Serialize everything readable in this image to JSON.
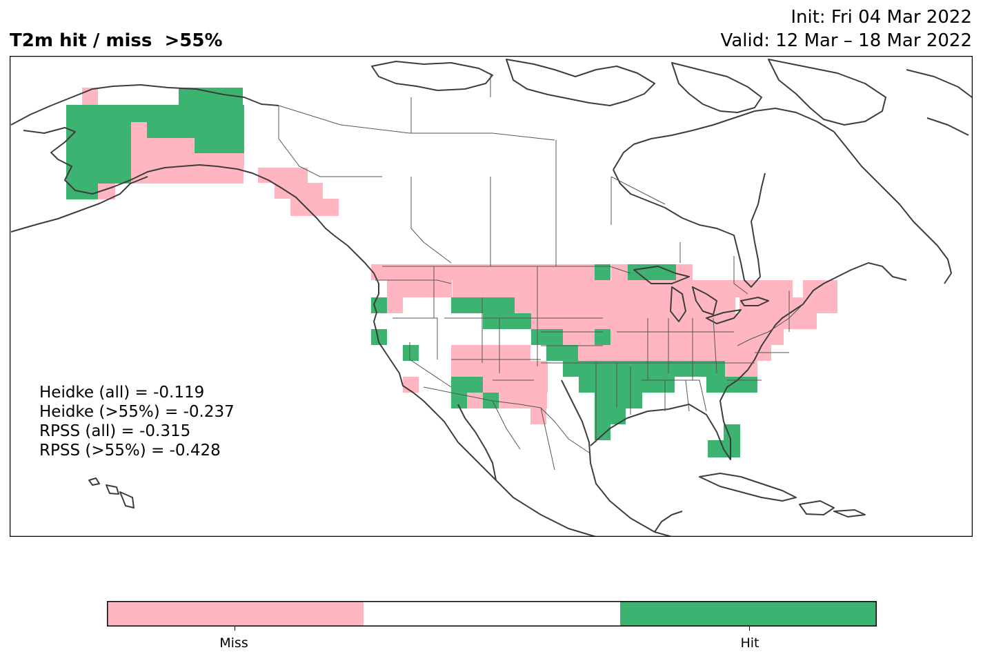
{
  "title": "T2m hit / miss  >55%",
  "init": "Init: Fri 04 Mar 2022",
  "valid": "Valid: 12 Mar – 18 Mar 2022",
  "stats": [
    "Heidke (all) = -0.119",
    "Heidke (>55%) = -0.237",
    "RPSS (all) = -0.315",
    "RPSS (>55%) = -0.428"
  ],
  "colorbar": {
    "labels": [
      "Miss",
      "Hit"
    ],
    "colors": [
      "#ffb6c1",
      "#ffffff",
      "#3cb371"
    ]
  },
  "colors": {
    "miss": "#ffb6c1",
    "hit": "#3cb371",
    "coast": "#3c3c3c",
    "border": "#555555"
  },
  "legend": [
    {
      "label": "Miss",
      "color": "#ffb6c1"
    },
    {
      "label": "Hit",
      "color": "#3cb371"
    }
  ]
}
